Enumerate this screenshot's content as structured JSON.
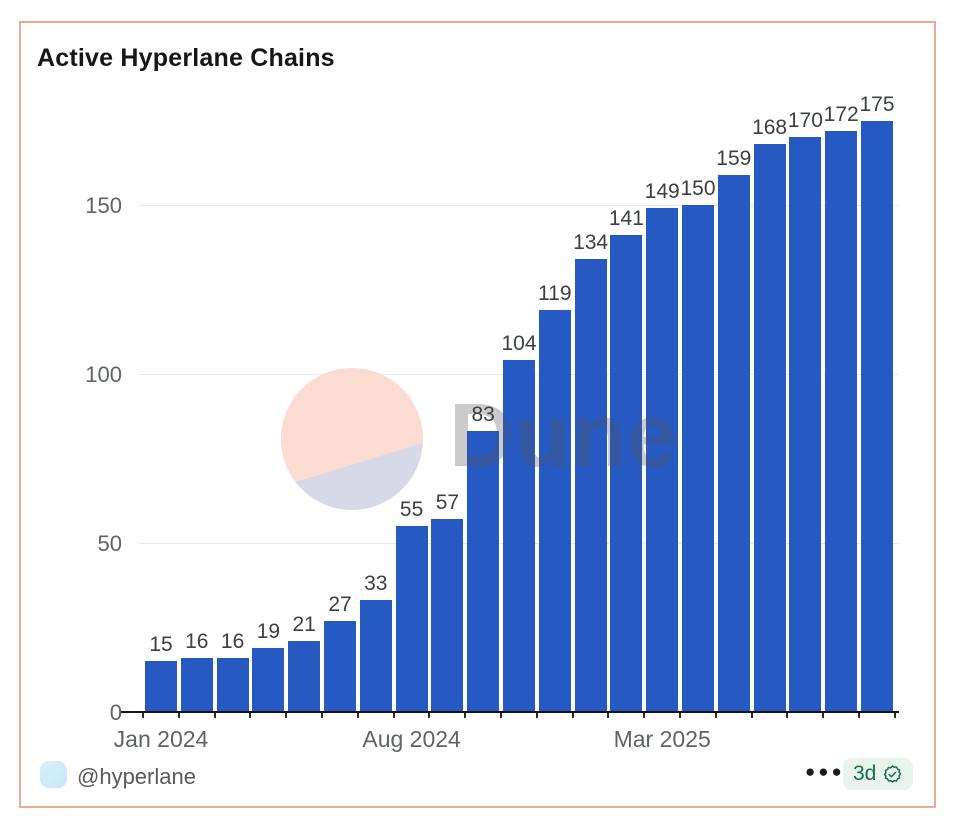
{
  "card": {
    "title": "Active Hyperlane Chains"
  },
  "chart_data": {
    "type": "bar",
    "title": "Active Hyperlane Chains",
    "values": [
      15,
      16,
      16,
      19,
      21,
      27,
      33,
      55,
      57,
      83,
      104,
      119,
      134,
      141,
      149,
      150,
      159,
      168,
      170,
      172,
      175
    ],
    "data_labels": [
      "15",
      "16",
      "16",
      "19",
      "21",
      "27",
      "33",
      "55",
      "57",
      "83",
      "104",
      "119",
      "134",
      "141",
      "149",
      "150",
      "159",
      "168",
      "170",
      "172",
      "175"
    ],
    "x_tick_labels": [
      {
        "index": 0,
        "label": "Jan 2024"
      },
      {
        "index": 7,
        "label": "Aug 2024"
      },
      {
        "index": 14,
        "label": "Mar 2025"
      }
    ],
    "y_ticks": [
      0,
      50,
      100,
      150
    ],
    "ylim": [
      0,
      180
    ],
    "grid": "horizontal",
    "legend": "none",
    "bar_color": "#2659c2"
  },
  "watermark": {
    "text": "Dune",
    "logo_top_color": "#fcdcd2",
    "logo_bottom_color": "#d8d9e6"
  },
  "footer": {
    "handle": "@hyperlane",
    "menu": "●●●",
    "badge_label": "3d"
  },
  "colors": {
    "bar": "#2659c2",
    "card_border": "#f3a893",
    "badge_bg": "#e8f4ed",
    "badge_green": "#157246",
    "gridline": "#e9e9e9",
    "axis": "#141414",
    "tick_label": "#5f6368",
    "value_label": "#3c4043"
  }
}
